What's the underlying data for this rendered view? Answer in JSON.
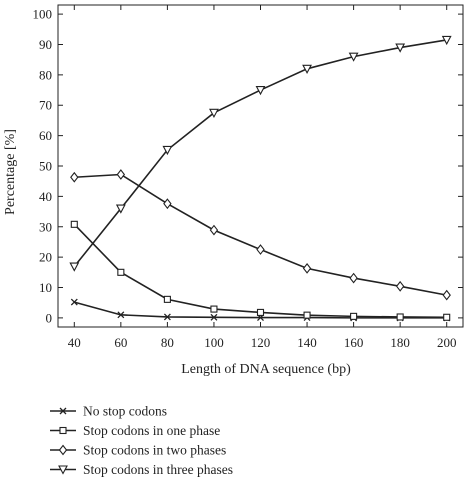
{
  "chart_data": {
    "type": "line",
    "xlabel": "Length of DNA sequence (bp)",
    "ylabel": "Percentage [%]",
    "x": [
      40,
      60,
      80,
      100,
      120,
      140,
      160,
      180,
      200
    ],
    "xlim": [
      33,
      207
    ],
    "ylim": [
      -3,
      103
    ],
    "xticks": [
      40,
      60,
      80,
      100,
      120,
      140,
      160,
      180,
      200
    ],
    "yticks": [
      0,
      10,
      20,
      30,
      40,
      50,
      60,
      70,
      80,
      90,
      100
    ],
    "grid": false,
    "legend_position": "below-plot",
    "series": [
      {
        "name": "No stop codons",
        "marker": "x",
        "values": [
          5.2,
          1.0,
          0.3,
          0.2,
          0.1,
          0.1,
          0.0,
          0.0,
          0.0
        ]
      },
      {
        "name": "Stop codons in one phase",
        "marker": "square",
        "values": [
          30.8,
          15.0,
          6.1,
          2.9,
          1.8,
          0.9,
          0.5,
          0.3,
          0.2
        ]
      },
      {
        "name": "Stop codons in two phases",
        "marker": "diamond",
        "values": [
          46.3,
          47.2,
          37.6,
          28.9,
          22.5,
          16.3,
          13.1,
          10.4,
          7.5
        ]
      },
      {
        "name": "Stop codons in three phases",
        "marker": "triangle-down",
        "values": [
          16.9,
          36.0,
          55.3,
          67.5,
          75.0,
          82.0,
          86.0,
          89.0,
          91.5
        ]
      }
    ]
  }
}
